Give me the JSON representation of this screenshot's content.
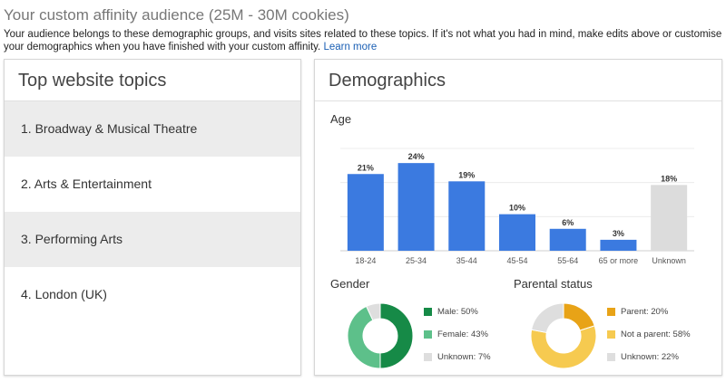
{
  "header": {
    "title": "Your custom affinity audience (25M - 30M cookies)",
    "description": "Your audience belongs to these demographic groups, and visits sites related to these topics. If it's not what you had in mind, make edits above or customise your demographics when you have finished with your custom affinity.",
    "learn_more": "Learn more"
  },
  "topics_panel": {
    "title": "Top website topics",
    "items": [
      "1. Broadway & Musical Theatre",
      "2. Arts & Entertainment",
      "3. Performing Arts",
      "4. London (UK)"
    ]
  },
  "demographics_panel": {
    "title": "Demographics",
    "age_label": "Age",
    "gender_label": "Gender",
    "parental_label": "Parental status"
  },
  "colors": {
    "bar_blue": "#3b7ae0",
    "bar_unknown": "#dcdcdc",
    "gender_male": "#168a47",
    "gender_female": "#5dc08a",
    "gender_unknown": "#dedede",
    "parent_parent": "#e8a317",
    "parent_not": "#f6ca50",
    "parent_unknown": "#dedede"
  },
  "chart_data": [
    {
      "type": "bar",
      "title": "Age",
      "categories": [
        "18-24",
        "25-34",
        "35-44",
        "45-54",
        "55-64",
        "65 or more",
        "Unknown"
      ],
      "values": [
        21,
        24,
        19,
        10,
        6,
        3,
        18
      ],
      "value_labels": [
        "21%",
        "24%",
        "19%",
        "10%",
        "6%",
        "3%",
        "18%"
      ],
      "ylim": [
        0,
        28
      ],
      "grid": true
    },
    {
      "type": "pie",
      "title": "Gender",
      "labels": [
        "Male",
        "Female",
        "Unknown"
      ],
      "values": [
        50,
        43,
        7
      ],
      "legend": [
        "Male: 50%",
        "Female: 43%",
        "Unknown: 7%"
      ]
    },
    {
      "type": "pie",
      "title": "Parental status",
      "labels": [
        "Parent",
        "Not a parent",
        "Unknown"
      ],
      "values": [
        20,
        58,
        22
      ],
      "legend": [
        "Parent: 20%",
        "Not a parent: 58%",
        "Unknown: 22%"
      ]
    }
  ]
}
